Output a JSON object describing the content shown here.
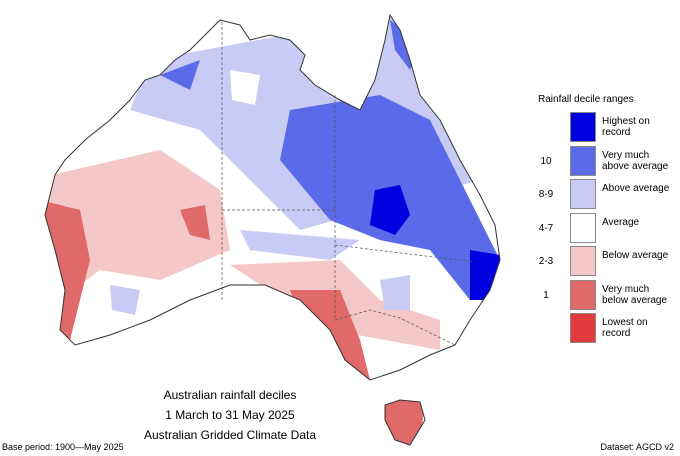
{
  "legend": {
    "title": "Rainfall decile ranges",
    "items": [
      {
        "label": "Highest on record",
        "color": "#0000e0"
      },
      {
        "label": "Very much above average",
        "range": "10",
        "color": "#5a6ae8"
      },
      {
        "label": "Above average",
        "range": "8-9",
        "color": "#c8ccf4"
      },
      {
        "label": "Average",
        "range": "4-7",
        "color": "#ffffff"
      },
      {
        "label": "Below average",
        "range": "2-3",
        "color": "#f4c8c8"
      },
      {
        "label": "Very much below average",
        "range": "1",
        "color": "#e06a6a"
      },
      {
        "label": "Lowest on record",
        "color": "#e03a3a"
      }
    ]
  },
  "caption": [
    "Australian rainfall deciles",
    "1 March to 31 May 2025",
    "Australian Gridded Climate Data"
  ],
  "footer": {
    "base_period": "Base period: 1900—May 2025",
    "dataset": "Dataset: AGCD v2"
  }
}
